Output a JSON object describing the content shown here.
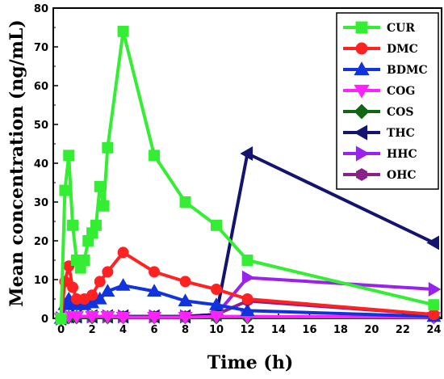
{
  "chart_data": {
    "type": "line",
    "xlabel": "Time (h)",
    "ylabel": "Mean concentration (ng/mL)",
    "xlim": [
      -0.5,
      24.5
    ],
    "ylim": [
      0,
      80
    ],
    "xticks": [
      0,
      2,
      4,
      6,
      8,
      10,
      12,
      14,
      16,
      18,
      20,
      22,
      24
    ],
    "yticks": [
      0,
      10,
      20,
      30,
      40,
      50,
      60,
      70,
      80
    ],
    "grid": false,
    "legend_position": "top-right",
    "series": [
      {
        "name": "CUR",
        "color": "#33ee33",
        "marker": "square",
        "points": [
          [
            0,
            0
          ],
          [
            0.25,
            33
          ],
          [
            0.5,
            42
          ],
          [
            0.75,
            24
          ],
          [
            1,
            15
          ],
          [
            1.25,
            13
          ],
          [
            1.5,
            15
          ],
          [
            1.75,
            20
          ],
          [
            2,
            22
          ],
          [
            2.25,
            24
          ],
          [
            2.5,
            34
          ],
          [
            2.75,
            29
          ],
          [
            3,
            44
          ],
          [
            4,
            74
          ],
          [
            6,
            42
          ],
          [
            8,
            30
          ],
          [
            10,
            24
          ],
          [
            12,
            15
          ],
          [
            24,
            3.5
          ]
        ]
      },
      {
        "name": "DMC",
        "color": "#ff2222",
        "marker": "circle",
        "points": [
          [
            0,
            0
          ],
          [
            0.25,
            9.5
          ],
          [
            0.5,
            13.5
          ],
          [
            0.75,
            8
          ],
          [
            1,
            5
          ],
          [
            1.5,
            5
          ],
          [
            2,
            6
          ],
          [
            2.5,
            9.5
          ],
          [
            3,
            12
          ],
          [
            4,
            17
          ],
          [
            6,
            12
          ],
          [
            8,
            9.5
          ],
          [
            10,
            7.5
          ],
          [
            12,
            5
          ],
          [
            24,
            1
          ]
        ]
      },
      {
        "name": "BDMC",
        "color": "#1133dd",
        "marker": "triangle-up",
        "points": [
          [
            0,
            0
          ],
          [
            0.25,
            3.5
          ],
          [
            0.5,
            5
          ],
          [
            0.75,
            4
          ],
          [
            1,
            3.5
          ],
          [
            1.5,
            3.5
          ],
          [
            2,
            4
          ],
          [
            2.5,
            5
          ],
          [
            3,
            7
          ],
          [
            4,
            8.5
          ],
          [
            6,
            7
          ],
          [
            8,
            4.5
          ],
          [
            10,
            3.5
          ],
          [
            12,
            2
          ],
          [
            24,
            0.5
          ]
        ]
      },
      {
        "name": "COG",
        "color": "#ff22ff",
        "marker": "triangle-down",
        "points": [
          [
            0,
            0
          ],
          [
            0.5,
            0.5
          ],
          [
            1,
            0.5
          ],
          [
            2,
            0.5
          ],
          [
            3,
            0.5
          ],
          [
            4,
            0.3
          ],
          [
            6,
            0.3
          ],
          [
            8,
            0.3
          ],
          [
            10,
            0.5
          ],
          [
            12,
            0.5
          ],
          [
            24,
            0.3
          ]
        ]
      },
      {
        "name": "COS",
        "color": "#116611",
        "marker": "diamond",
        "points": [
          [
            0,
            0
          ],
          [
            0.5,
            0.3
          ],
          [
            1,
            0.3
          ],
          [
            2,
            0.3
          ],
          [
            3,
            0.3
          ],
          [
            4,
            0.3
          ],
          [
            6,
            0.3
          ],
          [
            8,
            0.3
          ],
          [
            10,
            0.3
          ],
          [
            12,
            0.3
          ],
          [
            24,
            0.3
          ]
        ]
      },
      {
        "name": "THC",
        "color": "#141470",
        "marker": "triangle-left",
        "points": [
          [
            0,
            0
          ],
          [
            0.5,
            0.5
          ],
          [
            1,
            0.5
          ],
          [
            2,
            0.5
          ],
          [
            3,
            0.5
          ],
          [
            4,
            0.5
          ],
          [
            6,
            0.5
          ],
          [
            8,
            0.5
          ],
          [
            10,
            1
          ],
          [
            12,
            42.5
          ],
          [
            24,
            19.5
          ]
        ]
      },
      {
        "name": "HHC",
        "color": "#9922ee",
        "marker": "triangle-right",
        "points": [
          [
            0,
            0
          ],
          [
            0.5,
            0.5
          ],
          [
            1,
            0.5
          ],
          [
            2,
            0.5
          ],
          [
            3,
            0.5
          ],
          [
            4,
            0.5
          ],
          [
            6,
            0.5
          ],
          [
            8,
            0.5
          ],
          [
            10,
            1
          ],
          [
            12,
            10.5
          ],
          [
            24,
            7.5
          ]
        ]
      },
      {
        "name": "OHC",
        "color": "#882288",
        "marker": "hexagon",
        "points": [
          [
            0,
            0
          ],
          [
            0.5,
            0.5
          ],
          [
            1,
            0.5
          ],
          [
            2,
            0.5
          ],
          [
            3,
            0.5
          ],
          [
            4,
            0.5
          ],
          [
            6,
            0.5
          ],
          [
            8,
            0.5
          ],
          [
            10,
            1
          ],
          [
            12,
            4.5
          ],
          [
            24,
            1
          ]
        ]
      }
    ]
  }
}
